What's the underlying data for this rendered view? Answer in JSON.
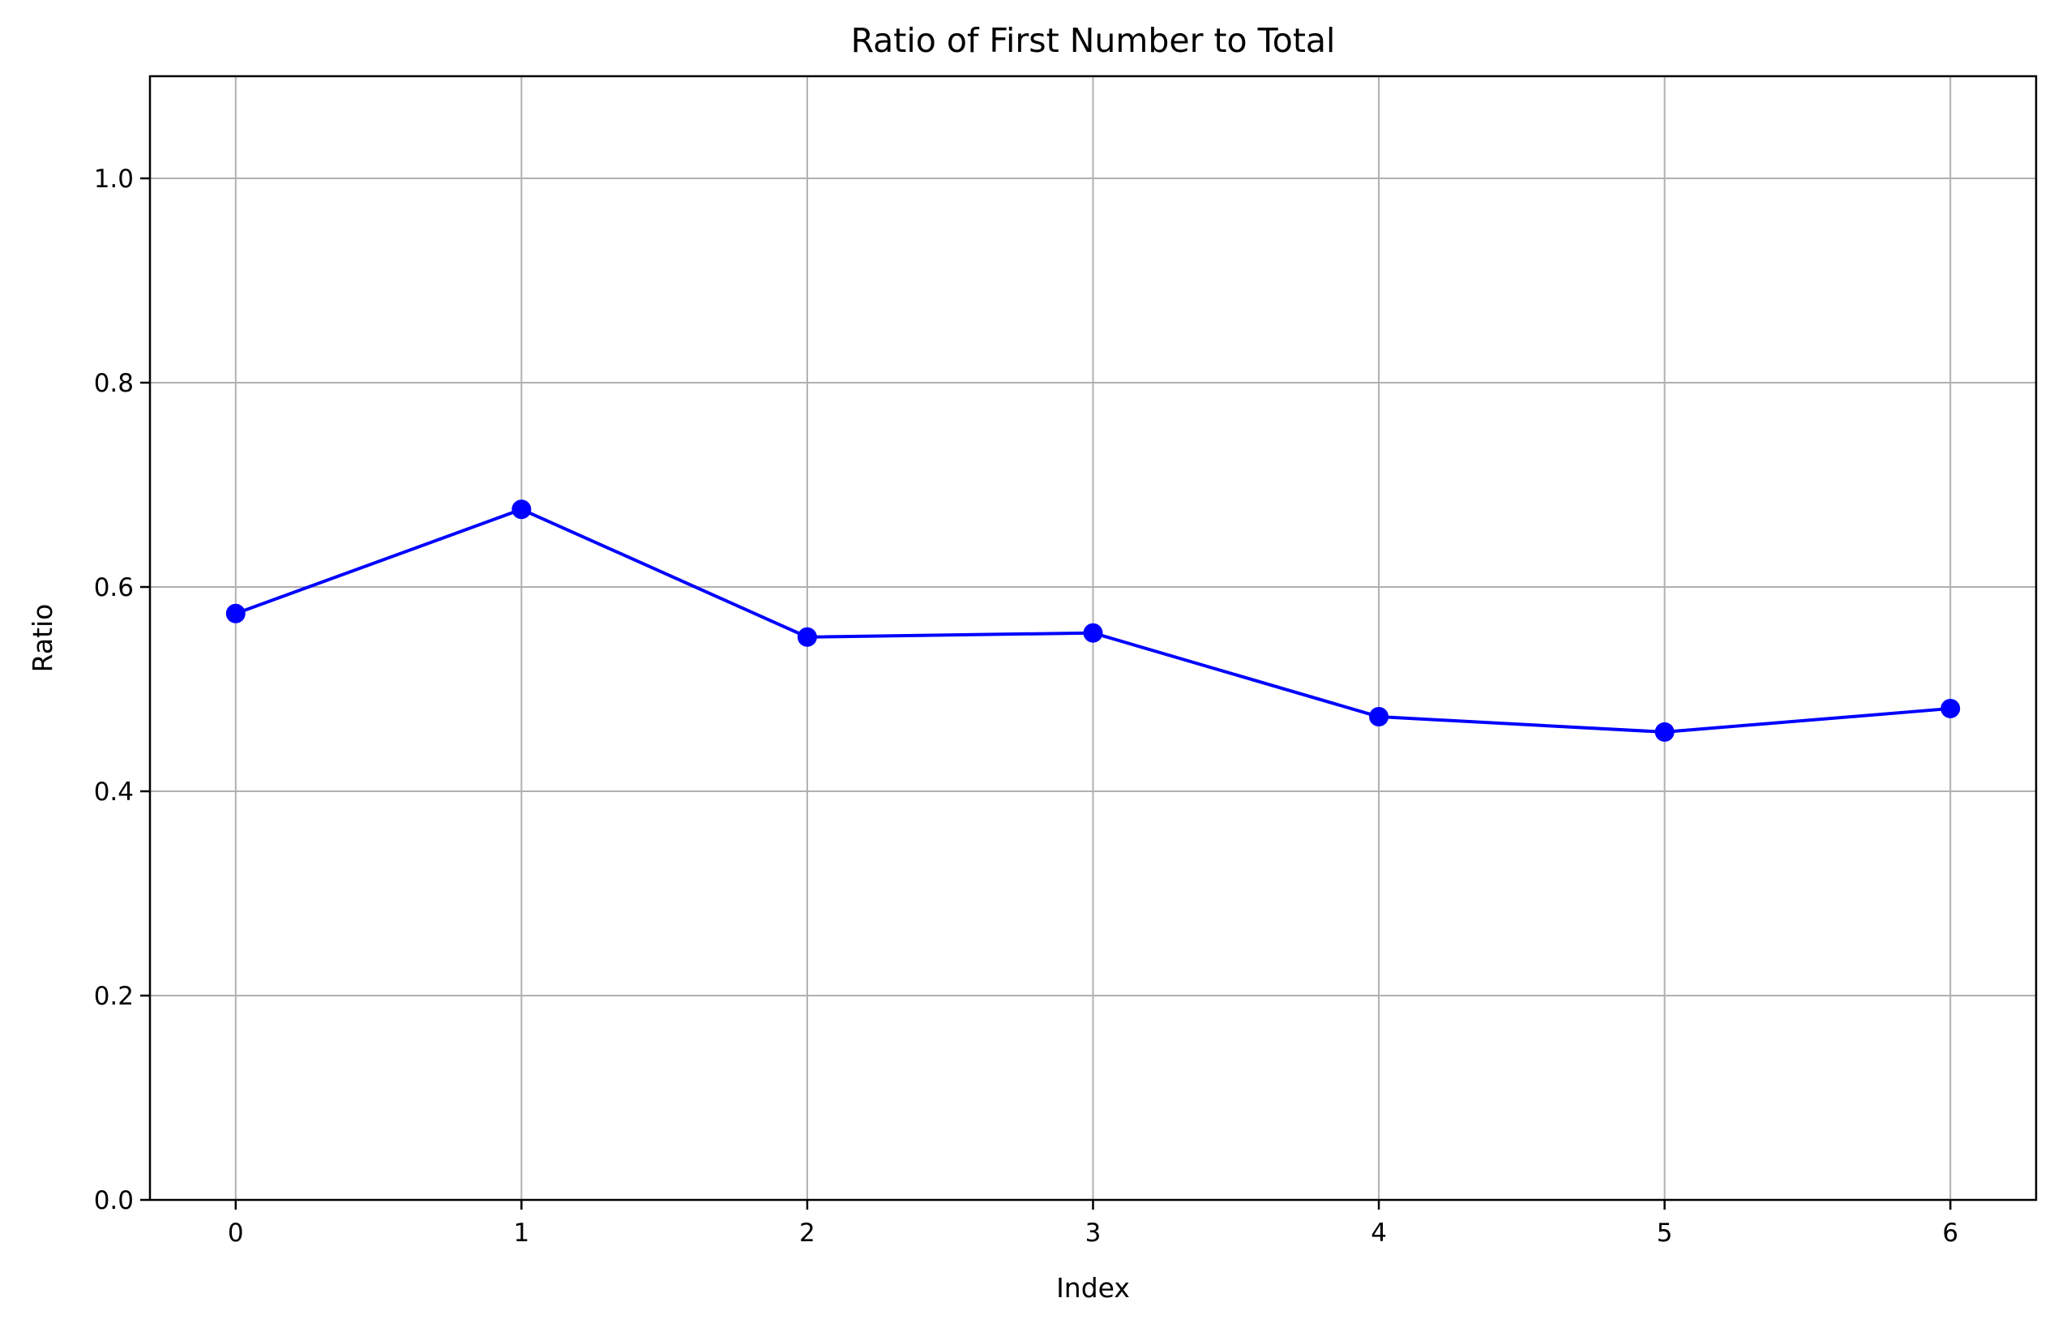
{
  "chart_data": {
    "type": "line",
    "title": "Ratio of First Number to Total",
    "xlabel": "Index",
    "ylabel": "Ratio",
    "x": [
      0,
      1,
      2,
      3,
      4,
      5,
      6
    ],
    "xticks": [
      "0",
      "1",
      "2",
      "3",
      "4",
      "5",
      "6"
    ],
    "yticks": [
      "0.0",
      "0.2",
      "0.4",
      "0.6",
      "0.8",
      "1.0"
    ],
    "xlim": [
      -0.3,
      6.3
    ],
    "ylim": [
      0,
      1.1
    ],
    "series": [
      {
        "values": [
          0.574,
          0.676,
          0.551,
          0.555,
          0.473,
          0.458,
          0.481
        ],
        "color": "#0000ff",
        "marker": "circle"
      }
    ],
    "grid": true,
    "legend": "none"
  }
}
